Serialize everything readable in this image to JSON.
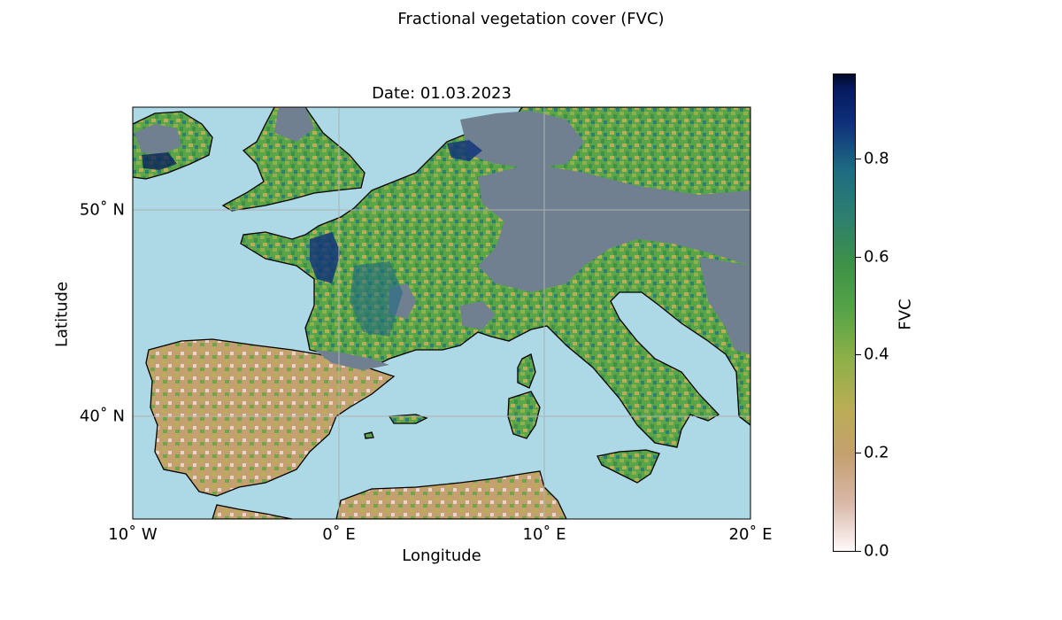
{
  "figure": {
    "title": "Fractional vegetation cover (FVC)"
  },
  "map": {
    "title": "Date: 01.03.2023",
    "xlabel": "Longitude",
    "ylabel": "Latitude",
    "extent_lon": [
      -10,
      20
    ],
    "extent_lat": [
      35,
      55
    ],
    "grid": true,
    "x_ticks": [
      {
        "value": -10,
        "label": "10˚ W"
      },
      {
        "value": 0,
        "label": "0˚ E"
      },
      {
        "value": 10,
        "label": "10˚ E"
      },
      {
        "value": 20,
        "label": "20˚ E"
      }
    ],
    "y_ticks": [
      {
        "value": 40,
        "label": "40˚ N"
      },
      {
        "value": 50,
        "label": "50˚ N"
      }
    ],
    "colors": {
      "ocean": "#add8e6",
      "no_data": "#708090",
      "coastline": "#000000"
    }
  },
  "colorbar": {
    "label": "FVC",
    "ticks": [
      {
        "value": 0.0,
        "label": "0.0"
      },
      {
        "value": 0.2,
        "label": "0.2"
      },
      {
        "value": 0.4,
        "label": "0.4"
      },
      {
        "value": 0.6,
        "label": "0.6"
      },
      {
        "value": 0.8,
        "label": "0.8"
      }
    ],
    "range": [
      0.0,
      0.97
    ],
    "colormap": "gist_earth_r"
  }
}
